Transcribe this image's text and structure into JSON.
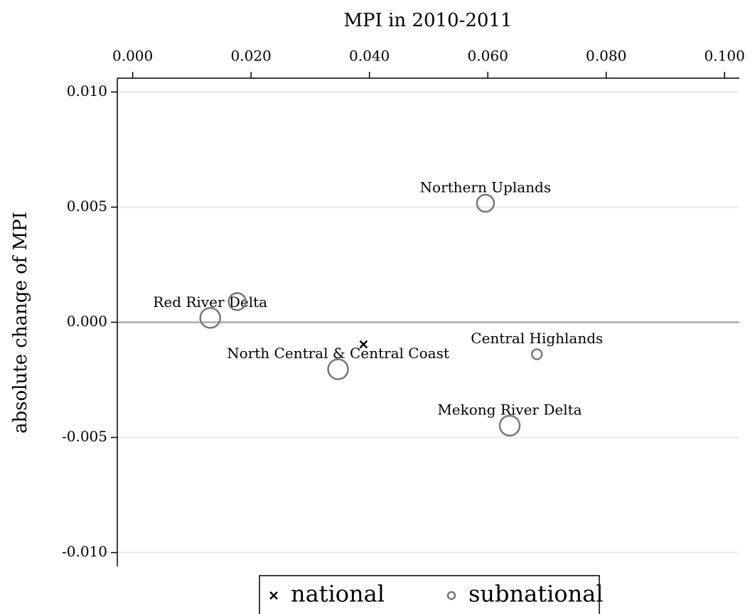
{
  "chart_data": {
    "type": "scatter",
    "title": "MPI in 2010-2011",
    "y_label": "absolute change of MPI",
    "xlim": [
      -0.0026,
      0.1025
    ],
    "xticks": [
      {
        "value": 0,
        "label": "0.000"
      },
      {
        "value": 0.02,
        "label": "0.020"
      },
      {
        "value": 0.04,
        "label": "0.040"
      },
      {
        "value": 0.06,
        "label": "0.060"
      },
      {
        "value": 0.08,
        "label": "0.080"
      },
      {
        "value": 0.1,
        "label": "0.100"
      }
    ],
    "ylim": [
      -0.0106,
      0.0106
    ],
    "yticks": [
      {
        "value": -0.01,
        "label": "-0.010"
      },
      {
        "value": -0.005,
        "label": "-0.005"
      },
      {
        "value": 0,
        "label": "0.000"
      },
      {
        "value": 0.005,
        "label": "0.005"
      },
      {
        "value": 0.01,
        "label": "0.010"
      }
    ],
    "grid": true,
    "x_axis_position": "top",
    "legend_position": "bottom",
    "series": [
      {
        "name": "national",
        "color": "#000000",
        "marker": "x",
        "x": [
          0.039
        ],
        "values": [
          -0.00096
        ]
      },
      {
        "name": "subnational",
        "color": "#777777",
        "marker": "circle",
        "labels": [
          "Northern Uplands",
          "Red River Delta",
          null,
          "North Central & Central Coast",
          "Central Highlands",
          "Mekong River Delta"
        ],
        "x": [
          0.0596,
          0.0131,
          0.01766,
          0.0347,
          0.0683,
          0.0637
        ],
        "values": [
          0.00517,
          0.00019,
          0.0009,
          -0.00204,
          -0.00139,
          -0.00449
        ],
        "sizes": [
          12,
          14,
          12,
          14,
          7,
          14
        ]
      }
    ]
  }
}
